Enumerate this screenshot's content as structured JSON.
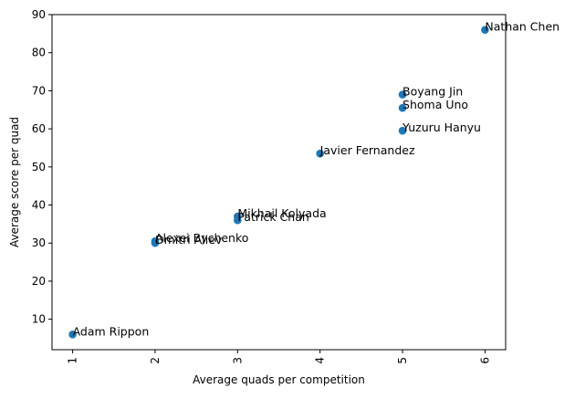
{
  "chart_data": {
    "type": "scatter",
    "title": "",
    "xlabel": "Average quads per competition",
    "ylabel": "Average score per quad",
    "xlim": [
      0.75,
      6.25
    ],
    "ylim": [
      2,
      90
    ],
    "xticks": [
      1,
      2,
      3,
      4,
      5,
      6
    ],
    "yticks": [
      10,
      20,
      30,
      40,
      50,
      60,
      70,
      80,
      90
    ],
    "xtick_rotation": 90,
    "grid": false,
    "legend": "none",
    "marker_color": "#1f77b4",
    "points": [
      {
        "label": "Nathan Chen",
        "x": 6,
        "y": 86
      },
      {
        "label": "Boyang Jin",
        "x": 5,
        "y": 69
      },
      {
        "label": "Shoma Uno",
        "x": 5,
        "y": 65.5
      },
      {
        "label": "Yuzuru Hanyu",
        "x": 5,
        "y": 59.5
      },
      {
        "label": "Javier Fernandez",
        "x": 4,
        "y": 53.5
      },
      {
        "label": "Mikhail Kolyada",
        "x": 3,
        "y": 37
      },
      {
        "label": "Patrick Chan",
        "x": 3,
        "y": 36
      },
      {
        "label": "Alexei Bychenko",
        "x": 2,
        "y": 30.5
      },
      {
        "label": "Dmitri Aliev",
        "x": 2,
        "y": 30
      },
      {
        "label": "Adam Rippon",
        "x": 1,
        "y": 6
      }
    ]
  }
}
